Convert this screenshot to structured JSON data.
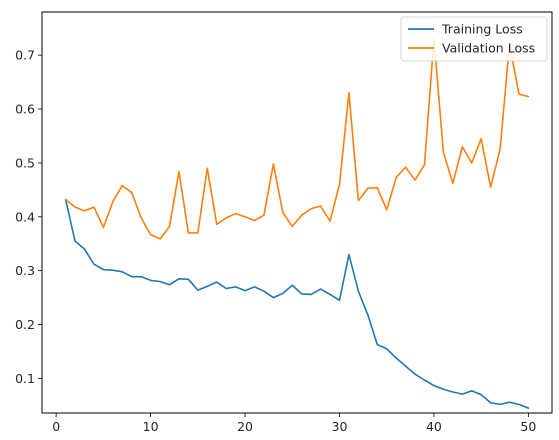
{
  "chart_data": {
    "type": "line",
    "title": "",
    "xlabel": "",
    "ylabel": "",
    "xlim": [
      -1.5,
      52.5
    ],
    "ylim": [
      0.036,
      0.78
    ],
    "x_ticks": [
      0,
      10,
      20,
      30,
      40,
      50
    ],
    "y_ticks": [
      0.1,
      0.2,
      0.3,
      0.4,
      0.5,
      0.6,
      0.7
    ],
    "grid": false,
    "legend_position": "top-right",
    "x": [
      1,
      2,
      3,
      4,
      5,
      6,
      7,
      8,
      9,
      10,
      11,
      12,
      13,
      14,
      15,
      16,
      17,
      18,
      19,
      20,
      21,
      22,
      23,
      24,
      25,
      26,
      27,
      28,
      29,
      30,
      31,
      32,
      33,
      34,
      35,
      36,
      37,
      38,
      39,
      40,
      41,
      42,
      43,
      44,
      45,
      46,
      47,
      48,
      49,
      50
    ],
    "series": [
      {
        "name": "Training Loss",
        "color": "#1f77b4",
        "values": [
          0.432,
          0.355,
          0.34,
          0.312,
          0.302,
          0.301,
          0.298,
          0.289,
          0.289,
          0.282,
          0.28,
          0.274,
          0.285,
          0.284,
          0.264,
          0.271,
          0.279,
          0.267,
          0.27,
          0.263,
          0.27,
          0.262,
          0.25,
          0.258,
          0.273,
          0.257,
          0.256,
          0.266,
          0.256,
          0.245,
          0.33,
          0.262,
          0.218,
          0.163,
          0.155,
          0.138,
          0.123,
          0.108,
          0.097,
          0.087,
          0.08,
          0.075,
          0.071,
          0.077,
          0.07,
          0.055,
          0.052,
          0.056,
          0.052,
          0.045
        ]
      },
      {
        "name": "Validation Loss",
        "color": "#ff7f0e",
        "values": [
          0.432,
          0.418,
          0.411,
          0.418,
          0.38,
          0.428,
          0.458,
          0.445,
          0.398,
          0.367,
          0.359,
          0.382,
          0.484,
          0.37,
          0.37,
          0.49,
          0.386,
          0.398,
          0.406,
          0.4,
          0.393,
          0.403,
          0.498,
          0.408,
          0.382,
          0.403,
          0.415,
          0.42,
          0.392,
          0.46,
          0.63,
          0.43,
          0.453,
          0.454,
          0.413,
          0.473,
          0.492,
          0.468,
          0.497,
          0.73,
          0.52,
          0.462,
          0.53,
          0.5,
          0.545,
          0.455,
          0.525,
          0.72,
          0.628,
          0.623
        ]
      }
    ]
  }
}
